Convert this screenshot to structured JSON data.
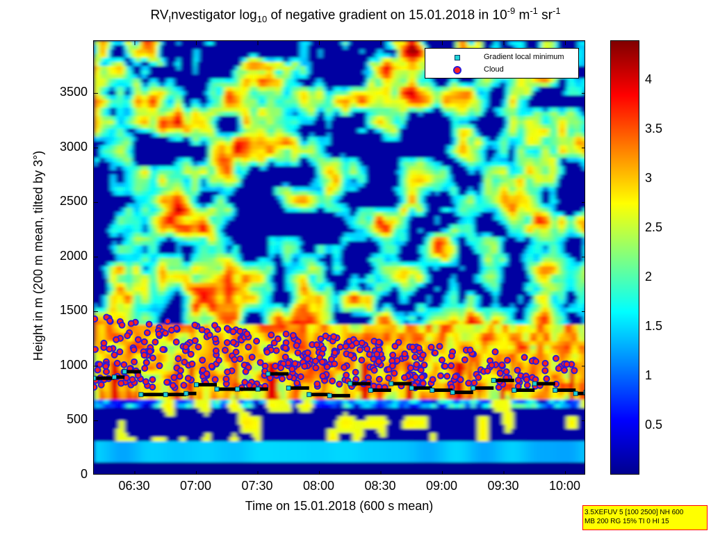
{
  "title": {
    "prefix": "RV",
    "sub1": "I",
    "mid": "nvestigator log",
    "sub2": "10",
    "rest": " of negative gradient on 15.01.2018 in 10",
    "sup1": "-9",
    "unit1": " m",
    "sup2": "-1",
    "unit2": " sr",
    "sup3": "-1"
  },
  "legend": {
    "items": [
      {
        "label": "Gradient local minimum"
      },
      {
        "label": "Cloud"
      }
    ]
  },
  "colorbar": {
    "ticks": [
      "0.5",
      "1",
      "1.5",
      "2",
      "2.5",
      "3",
      "3.5",
      "4"
    ],
    "range": [
      0,
      4.4
    ],
    "colors": [
      "#00008f",
      "#0000ff",
      "#0080ff",
      "#00ffff",
      "#80ff80",
      "#ffff00",
      "#ff8000",
      "#ff0000",
      "#800000"
    ]
  },
  "info_box": {
    "line1": "3.5XEFUV 5 [100 2500] NH 600",
    "line2": "MB 200 RG 15% TI 0 HI 15"
  },
  "chart_data": {
    "type": "heatmap",
    "xlabel": "Time on 15.01.2018 (600 s mean)",
    "ylabel": "Height in m (200 m mean, tilted by 3°)",
    "x_ticks": [
      "06:30",
      "07:00",
      "07:30",
      "08:00",
      "08:30",
      "09:00",
      "09:30",
      "10:00"
    ],
    "y_ticks": [
      "0",
      "500",
      "1000",
      "1500",
      "2000",
      "2500",
      "3000",
      "3500"
    ],
    "xlim": [
      "06:10",
      "10:10"
    ],
    "ylim": [
      0,
      3980
    ],
    "gradient_local_minimum": {
      "x": [
        "06:10",
        "06:20",
        "06:25",
        "06:33",
        "06:45",
        "06:55",
        "07:00",
        "07:10",
        "07:20",
        "07:30",
        "07:35",
        "07:45",
        "07:55",
        "08:05",
        "08:15",
        "08:25",
        "08:35",
        "08:45",
        "08:55",
        "09:05",
        "09:15",
        "09:25",
        "09:35",
        "09:45",
        "09:55",
        "10:05",
        "10:10"
      ],
      "y": [
        890,
        900,
        950,
        740,
        740,
        750,
        830,
        790,
        790,
        790,
        930,
        800,
        740,
        730,
        840,
        780,
        840,
        800,
        780,
        760,
        800,
        870,
        780,
        840,
        780,
        750,
        760
      ]
    },
    "cloud": {
      "x_range": [
        "06:10",
        "10:05"
      ],
      "y_range": [
        800,
        1480
      ]
    }
  }
}
